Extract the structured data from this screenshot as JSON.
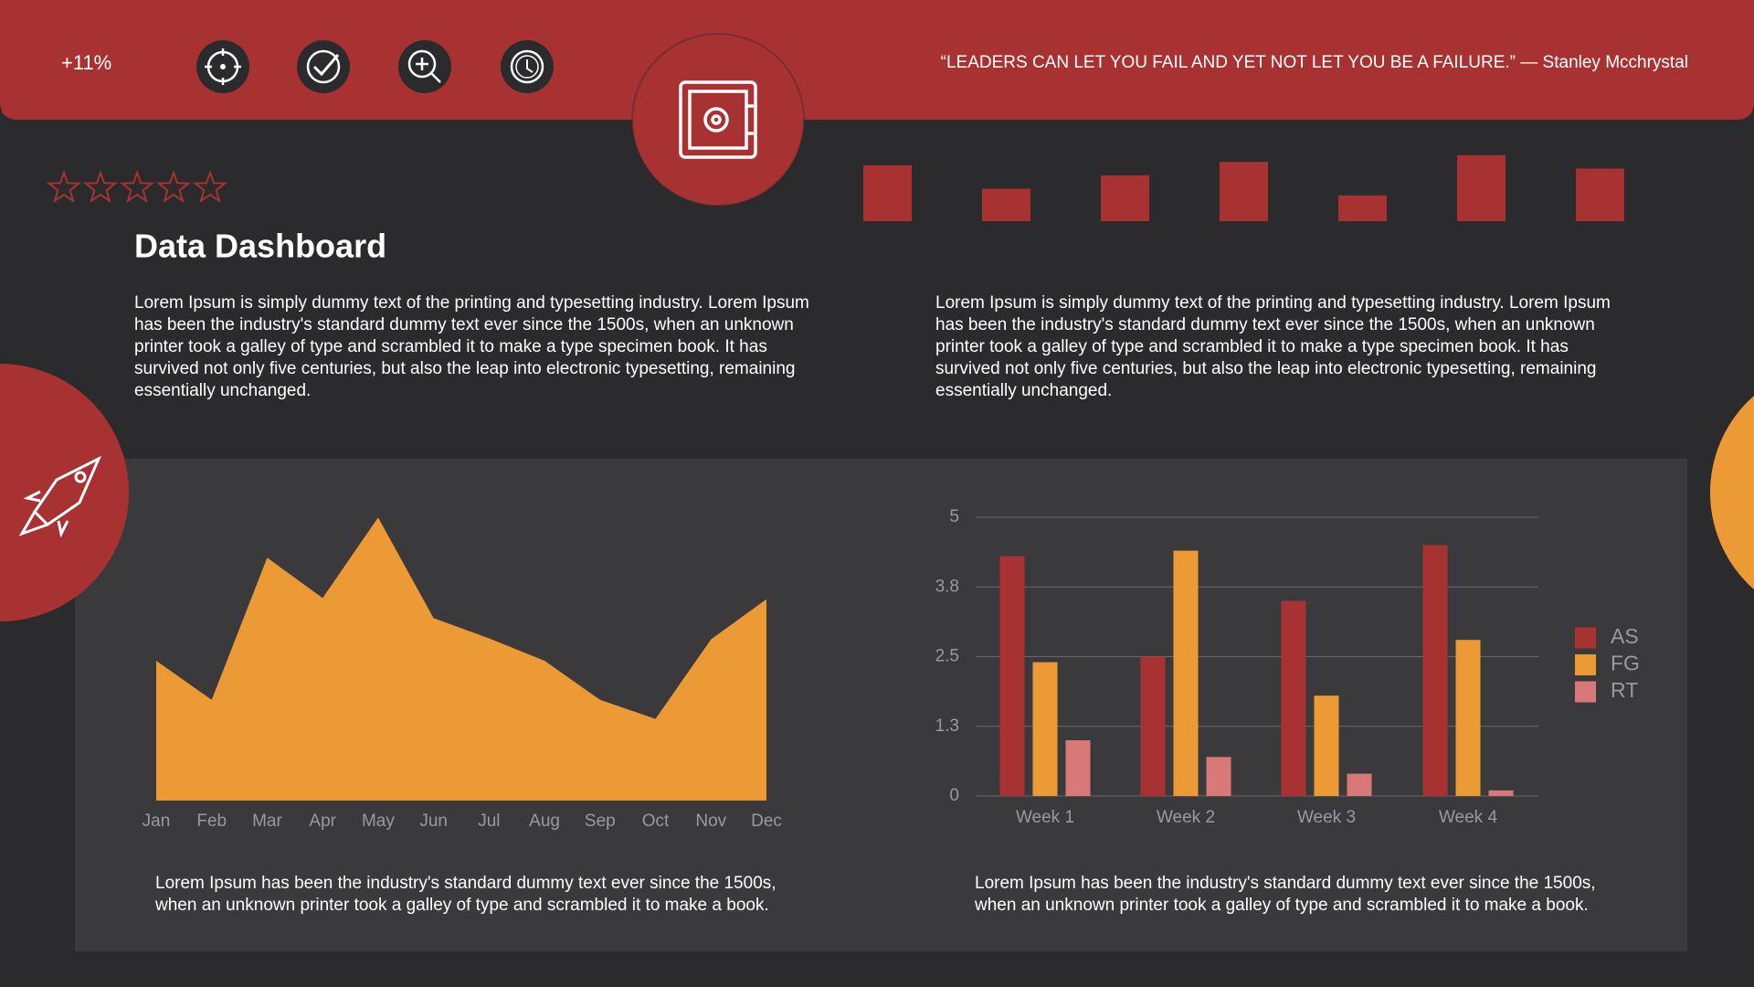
{
  "header": {
    "stat": "+11%",
    "quote": "“LEADERS CAN LET YOU FAIL AND YET NOT LET YOU BE A FAILURE.” — Stanley Mcchrystal"
  },
  "title": "Data Dashboard",
  "paragraphs": [
    "Lorem Ipsum is simply dummy text of the printing and typesetting industry. Lorem Ipsum has been the industry's standard dummy text ever since the 1500s, when an unknown printer took a galley of type and scrambled it to make a type specimen book. It has survived not only five centuries, but also the leap into electronic typesetting, remaining essentially unchanged.",
    "Lorem Ipsum is simply dummy text of the printing and typesetting industry. Lorem Ipsum has been the industry's standard dummy text ever since the 1500s, when an unknown printer took a galley of type and scrambled it to make a type specimen book. It has survived not only five centuries, but also the leap into electronic typesetting, remaining essentially unchanged."
  ],
  "captions": [
    "Lorem Ipsum has been the industry's standard dummy text ever since the 1500s, when an unknown printer took a galley of type and scrambled it to make a book.",
    "Lorem Ipsum has been the industry's standard dummy text ever since the 1500s, when an unknown printer took a galley of type and scrambled it to make a book."
  ],
  "chart_data": [
    {
      "type": "bar",
      "values": [
        50,
        29,
        41,
        53,
        23,
        59,
        47
      ],
      "color": "#a83232"
    },
    {
      "type": "area",
      "categories": [
        "Jan",
        "Feb",
        "Mar",
        "Apr",
        "May",
        "Jun",
        "Jul",
        "Aug",
        "Sep",
        "Oct",
        "Nov",
        "Dec"
      ],
      "values": [
        125,
        90,
        217,
        181,
        253,
        163,
        145,
        125,
        90,
        73,
        144,
        180
      ],
      "color": "#ec9a36"
    },
    {
      "type": "bar",
      "categories": [
        "Week 1",
        "Week 2",
        "Week 3",
        "Week 4"
      ],
      "series": [
        {
          "name": "AS",
          "color": "#a83232",
          "values": [
            4.3,
            2.5,
            3.5,
            4.5
          ]
        },
        {
          "name": "FG",
          "color": "#ec9a36",
          "values": [
            2.4,
            4.4,
            1.8,
            2.8
          ]
        },
        {
          "name": "RT",
          "color": "#d97878",
          "values": [
            1.0,
            0.7,
            0.4,
            0.1
          ]
        }
      ],
      "ylim": [
        0,
        5
      ],
      "yticks": [
        0,
        {
          "value": 1.25,
          "label": "1.3"
        },
        2.5,
        {
          "value": 3.75,
          "label": "3.8"
        },
        5
      ],
      "grid": true,
      "legend": "right"
    }
  ]
}
